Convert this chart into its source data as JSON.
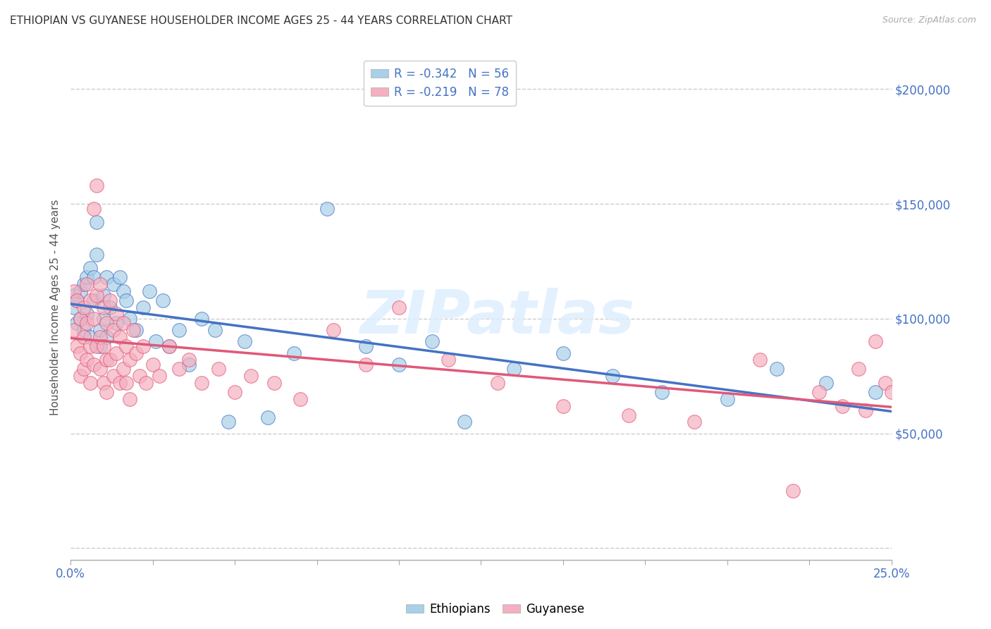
{
  "title": "ETHIOPIAN VS GUYANESE HOUSEHOLDER INCOME AGES 25 - 44 YEARS CORRELATION CHART",
  "source": "Source: ZipAtlas.com",
  "ylabel": "Householder Income Ages 25 - 44 years",
  "xlim": [
    0.0,
    0.25
  ],
  "ylim": [
    -5000,
    215000
  ],
  "ethiopian_R": -0.342,
  "ethiopian_N": 56,
  "guyanese_R": -0.219,
  "guyanese_N": 78,
  "ethiopian_color": "#a8d0e8",
  "guyanese_color": "#f4b0c0",
  "ethiopian_line_color": "#4472c4",
  "guyanese_line_color": "#e05878",
  "background_color": "#ffffff",
  "watermark": "ZIPatlas",
  "ethiopians_x": [
    0.001,
    0.001,
    0.002,
    0.002,
    0.003,
    0.003,
    0.004,
    0.004,
    0.005,
    0.005,
    0.006,
    0.006,
    0.007,
    0.007,
    0.008,
    0.008,
    0.009,
    0.009,
    0.01,
    0.01,
    0.011,
    0.011,
    0.012,
    0.013,
    0.014,
    0.015,
    0.016,
    0.017,
    0.018,
    0.02,
    0.022,
    0.024,
    0.026,
    0.028,
    0.03,
    0.033,
    0.036,
    0.04,
    0.044,
    0.048,
    0.053,
    0.06,
    0.068,
    0.078,
    0.09,
    0.1,
    0.11,
    0.12,
    0.135,
    0.15,
    0.165,
    0.18,
    0.2,
    0.215,
    0.23,
    0.245
  ],
  "ethiopians_y": [
    110000,
    105000,
    108000,
    98000,
    112000,
    100000,
    115000,
    95000,
    118000,
    102000,
    122000,
    92000,
    108000,
    118000,
    128000,
    142000,
    95000,
    88000,
    110000,
    100000,
    118000,
    92000,
    105000,
    115000,
    98000,
    118000,
    112000,
    108000,
    100000,
    95000,
    105000,
    112000,
    90000,
    108000,
    88000,
    95000,
    80000,
    100000,
    95000,
    55000,
    90000,
    57000,
    85000,
    148000,
    88000,
    80000,
    90000,
    55000,
    78000,
    85000,
    75000,
    68000,
    65000,
    78000,
    72000,
    68000
  ],
  "guyanese_x": [
    0.001,
    0.001,
    0.002,
    0.002,
    0.003,
    0.003,
    0.003,
    0.004,
    0.004,
    0.004,
    0.005,
    0.005,
    0.005,
    0.006,
    0.006,
    0.006,
    0.007,
    0.007,
    0.007,
    0.008,
    0.008,
    0.008,
    0.009,
    0.009,
    0.009,
    0.01,
    0.01,
    0.01,
    0.011,
    0.011,
    0.011,
    0.012,
    0.012,
    0.013,
    0.013,
    0.014,
    0.014,
    0.015,
    0.015,
    0.016,
    0.016,
    0.017,
    0.017,
    0.018,
    0.018,
    0.019,
    0.02,
    0.021,
    0.022,
    0.023,
    0.025,
    0.027,
    0.03,
    0.033,
    0.036,
    0.04,
    0.045,
    0.05,
    0.055,
    0.062,
    0.07,
    0.08,
    0.09,
    0.1,
    0.115,
    0.13,
    0.15,
    0.17,
    0.19,
    0.21,
    0.22,
    0.228,
    0.235,
    0.24,
    0.242,
    0.245,
    0.248,
    0.25
  ],
  "guyanese_y": [
    112000,
    95000,
    108000,
    88000,
    100000,
    85000,
    75000,
    105000,
    92000,
    78000,
    115000,
    98000,
    82000,
    108000,
    88000,
    72000,
    148000,
    100000,
    80000,
    158000,
    110000,
    88000,
    115000,
    92000,
    78000,
    105000,
    88000,
    72000,
    98000,
    82000,
    68000,
    108000,
    82000,
    95000,
    75000,
    102000,
    85000,
    92000,
    72000,
    98000,
    78000,
    88000,
    72000,
    82000,
    65000,
    95000,
    85000,
    75000,
    88000,
    72000,
    80000,
    75000,
    88000,
    78000,
    82000,
    72000,
    78000,
    68000,
    75000,
    72000,
    65000,
    95000,
    80000,
    105000,
    82000,
    72000,
    62000,
    58000,
    55000,
    82000,
    25000,
    68000,
    62000,
    78000,
    60000,
    90000,
    72000,
    68000
  ]
}
